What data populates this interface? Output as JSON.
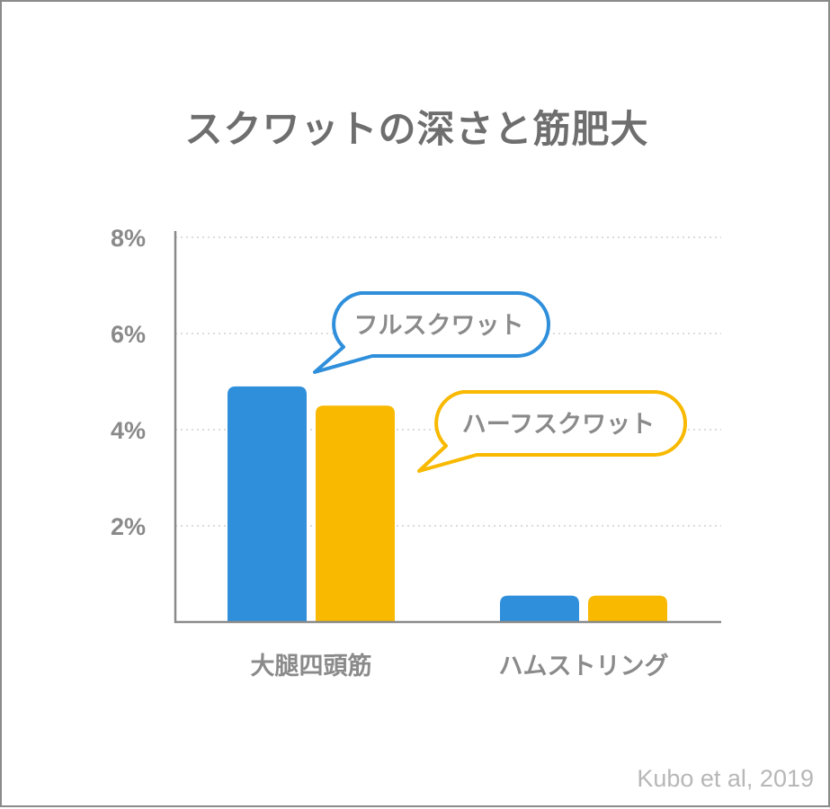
{
  "title": "スクワットの深さと筋肥大",
  "credit": "Kubo et al, 2019",
  "colors": {
    "full": "#2f8fdb",
    "half": "#f8b900",
    "axis": "#8a8a8a",
    "grid": "#cfcfcf"
  },
  "chart_data": {
    "type": "bar",
    "title": "スクワットの深さと筋肥大",
    "categories": [
      "大腿四頭筋",
      "ハムストリング"
    ],
    "series": [
      {
        "name": "フルスクワット",
        "values": [
          4.9,
          0.55
        ],
        "color": "#2f8fdb"
      },
      {
        "name": "ハーフスクワット",
        "values": [
          4.5,
          0.55
        ],
        "color": "#f8b900"
      }
    ],
    "yticks": [
      "2%",
      "4%",
      "6%",
      "8%"
    ],
    "ytick_values": [
      2,
      4,
      6,
      8
    ],
    "ylim": [
      0,
      8
    ],
    "grid": true,
    "legend": "speech bubbles"
  }
}
